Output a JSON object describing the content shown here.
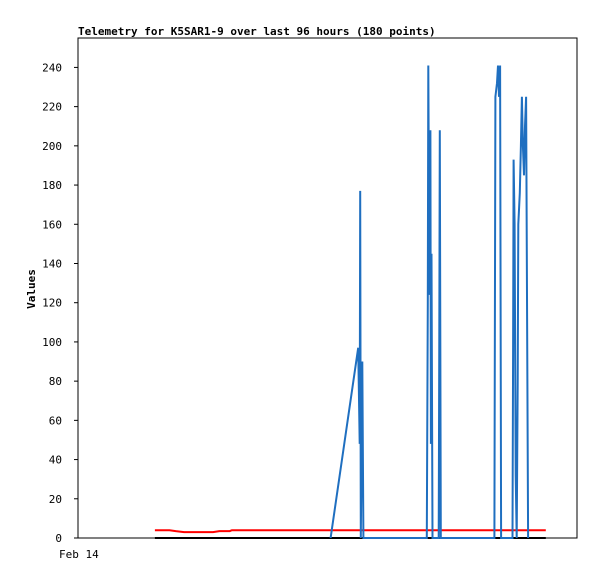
{
  "chart_data": {
    "type": "line",
    "title": "Telemetry for K5SAR1-9 over last 96 hours (180 points)",
    "ylabel": "Values",
    "xlabel": "",
    "x_tick_labels": [
      "Feb 14"
    ],
    "ylim": [
      0,
      255
    ],
    "y_ticks": [
      0,
      20,
      40,
      60,
      80,
      100,
      120,
      140,
      160,
      180,
      200,
      220,
      240
    ],
    "xlim": [
      0,
      96
    ],
    "grid": false,
    "legend": "none",
    "series": [
      {
        "color": "#ff0000",
        "points": [
          [
            14.8,
            4
          ],
          [
            17.6,
            4
          ],
          [
            18.8,
            3.5
          ],
          [
            20.4,
            3
          ],
          [
            26.0,
            3
          ],
          [
            27.2,
            3.5
          ],
          [
            29.2,
            3.5
          ],
          [
            29.6,
            4
          ],
          [
            90.0,
            4
          ]
        ]
      },
      {
        "color": "#000000",
        "points": [
          [
            14.8,
            0
          ],
          [
            90.0,
            0
          ]
        ]
      },
      {
        "color": "#1f6fc0",
        "points": [
          [
            48.6,
            0
          ],
          [
            53.9,
            97
          ],
          [
            54.2,
            48
          ],
          [
            54.3,
            177
          ],
          [
            54.4,
            0
          ],
          [
            54.7,
            90
          ],
          [
            54.9,
            0
          ],
          [
            67.1,
            0
          ],
          [
            67.3,
            120
          ],
          [
            67.4,
            241
          ],
          [
            67.6,
            124
          ],
          [
            67.8,
            208
          ],
          [
            67.9,
            48
          ],
          [
            68.0,
            145
          ],
          [
            68.2,
            0
          ],
          [
            69.4,
            0
          ],
          [
            69.5,
            104
          ],
          [
            69.6,
            208
          ],
          [
            69.8,
            0
          ],
          [
            80.1,
            0
          ],
          [
            80.2,
            112
          ],
          [
            80.3,
            225
          ],
          [
            80.6,
            232
          ],
          [
            80.8,
            241
          ],
          [
            81.0,
            225
          ],
          [
            81.2,
            241
          ],
          [
            81.4,
            0
          ],
          [
            83.6,
            0
          ],
          [
            83.7,
            96
          ],
          [
            83.8,
            193
          ],
          [
            84.0,
            160
          ],
          [
            84.2,
            32
          ],
          [
            84.4,
            0
          ],
          [
            84.6,
            80
          ],
          [
            84.7,
            160
          ],
          [
            85.0,
            176
          ],
          [
            85.2,
            200
          ],
          [
            85.4,
            225
          ],
          [
            85.6,
            200
          ],
          [
            85.8,
            185
          ],
          [
            86.0,
            210
          ],
          [
            86.2,
            225
          ],
          [
            86.4,
            112
          ],
          [
            86.6,
            0
          ]
        ]
      }
    ]
  }
}
